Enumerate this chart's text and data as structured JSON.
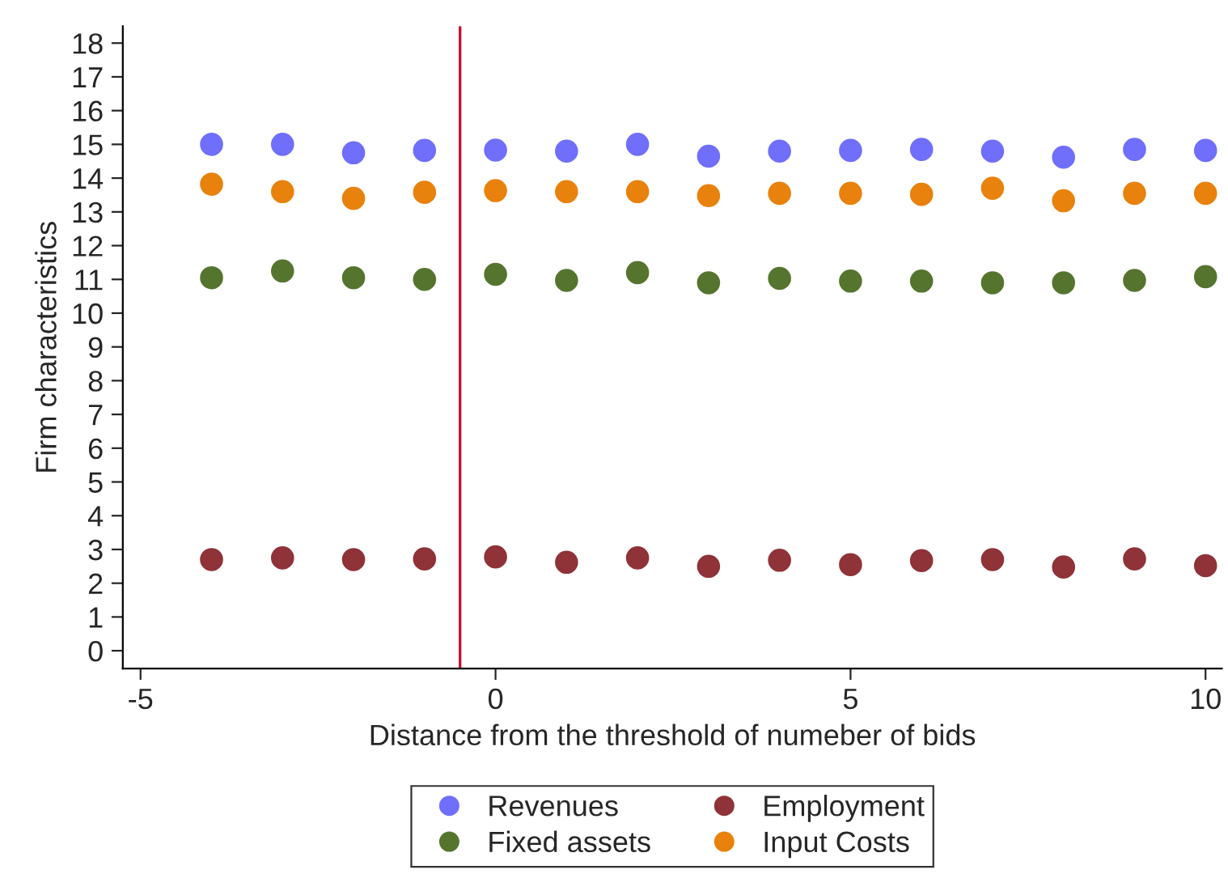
{
  "chart_data": {
    "type": "scatter",
    "xlabel": "Distance from the threshold of numeber of bids",
    "ylabel": "Firm characteristics",
    "x": [
      -4,
      -3,
      -2,
      -1,
      0,
      1,
      2,
      3,
      4,
      5,
      6,
      7,
      8,
      9,
      10
    ],
    "series": [
      {
        "name": "Revenues",
        "color": "#6f6ffb",
        "values": [
          15.0,
          15.0,
          14.75,
          14.82,
          14.83,
          14.8,
          15.0,
          14.65,
          14.8,
          14.82,
          14.85,
          14.8,
          14.62,
          14.85,
          14.82
        ]
      },
      {
        "name": "Fixed assets",
        "color": "#55752f",
        "values": [
          11.05,
          11.25,
          11.05,
          11.0,
          11.15,
          10.97,
          11.2,
          10.9,
          11.03,
          10.95,
          10.95,
          10.9,
          10.9,
          10.97,
          11.08
        ]
      },
      {
        "name": "Employment",
        "color": "#8f3338",
        "values": [
          2.7,
          2.75,
          2.7,
          2.72,
          2.78,
          2.62,
          2.75,
          2.5,
          2.68,
          2.55,
          2.67,
          2.7,
          2.48,
          2.72,
          2.52
        ]
      },
      {
        "name": "Input Costs",
        "color": "#e8820c",
        "values": [
          13.82,
          13.6,
          13.4,
          13.58,
          13.63,
          13.6,
          13.6,
          13.48,
          13.55,
          13.55,
          13.52,
          13.7,
          13.33,
          13.55,
          13.55
        ]
      }
    ],
    "xlim": [
      -5.25,
      10.23
    ],
    "xticks": [
      -5,
      0,
      5,
      10
    ],
    "ylim": [
      -0.53,
      18.5
    ],
    "yticks": [
      0,
      1,
      2,
      3,
      4,
      5,
      6,
      7,
      8,
      9,
      10,
      11,
      12,
      13,
      14,
      15,
      16,
      17,
      18
    ],
    "ref_lines": [
      {
        "axis": "x",
        "value": -0.5,
        "color": "#c8102e"
      }
    ],
    "marker": "circle",
    "grid": false,
    "legend": "bottom"
  }
}
